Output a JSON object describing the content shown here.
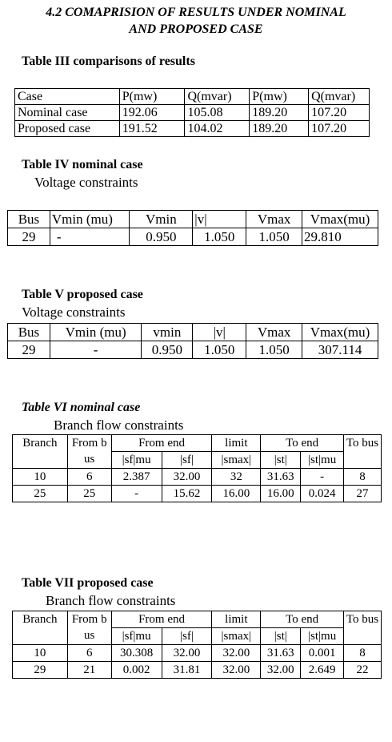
{
  "section": {
    "title_line1": "4.2 COMAPRISION OF RESULTS UNDER NOMINAL",
    "title_line2": "AND PROPOSED CASE"
  },
  "table3": {
    "caption": "Table III comparisons of results",
    "header": [
      "Case",
      "P(mw)",
      "Q(mvar)",
      "P(mw)",
      "Q(mvar)"
    ],
    "rows": [
      [
        "Nominal case",
        "192.06",
        "105.08",
        "189.20",
        "107.20"
      ],
      [
        "Proposed case",
        "191.52",
        "104.02",
        "189.20",
        "107.20"
      ]
    ]
  },
  "table4": {
    "caption": "Table IV nominal case",
    "subcaption": "Voltage constraints",
    "header": [
      "Bus",
      "Vmin (mu)",
      "Vmin",
      "|v|",
      "Vmax",
      "Vmax(mu)"
    ],
    "row": [
      "29",
      "-",
      "0.950",
      "1.050",
      "1.050",
      "29.810"
    ]
  },
  "table5": {
    "caption": "Table V proposed case",
    "subcaption": "Voltage constraints",
    "header": [
      "Bus",
      "Vmin (mu)",
      "vmin",
      "|v|",
      "Vmax",
      "Vmax(mu)"
    ],
    "row": [
      "29",
      "-",
      "0.950",
      "1.050",
      "1.050",
      "307.114"
    ]
  },
  "table6": {
    "caption": "Table VI  nominal case",
    "subcaption": "Branch flow constraints",
    "header_top": [
      "Branch",
      "From bus",
      "From end",
      "limit",
      "To  end",
      "To bus"
    ],
    "header_sub": [
      "|sf|mu",
      "|sf|",
      "|smax|",
      "|st|",
      "|st|mu"
    ],
    "rows": [
      [
        "10",
        "6",
        "2.387",
        "32.00",
        "32",
        "31.63",
        "-",
        "8"
      ],
      [
        "25",
        "25",
        "-",
        "15.62",
        "16.00",
        "16.00",
        "0.024",
        "27"
      ]
    ]
  },
  "table7": {
    "caption": "Table VII proposed case",
    "subcaption": "Branch flow constraints",
    "header_top": [
      "Branch",
      "From bus",
      "From end",
      "limit",
      "To  end",
      "To bus"
    ],
    "header_sub": [
      "|sf|mu",
      "|sf|",
      "|smax|",
      "|st|",
      "|st|mu"
    ],
    "rows": [
      [
        "10",
        "6",
        "30.308",
        "32.00",
        "32.00",
        "31.63",
        "0.001",
        "8"
      ],
      [
        "29",
        "21",
        "0.002",
        "31.81",
        "32.00",
        "32.00",
        "2.649",
        "22"
      ]
    ]
  }
}
